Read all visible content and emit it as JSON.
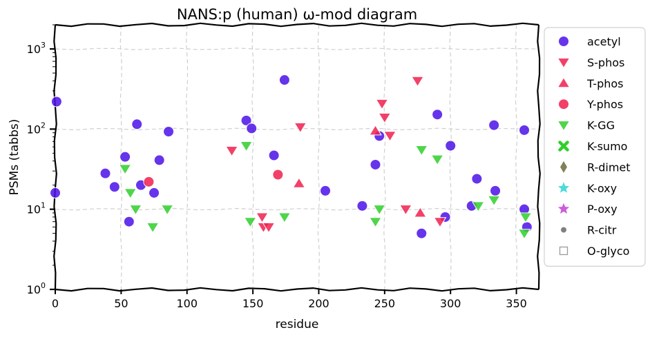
{
  "chart_data": {
    "type": "scatter",
    "title": "NANS:p (human) ω-mod diagram",
    "xlabel": "residue",
    "ylabel": "PSMs (tabbs)",
    "xlim": [
      0,
      367
    ],
    "ylim": [
      1,
      2000
    ],
    "yscale": "log",
    "grid": true,
    "legend_position": "outside-right",
    "x_ticks": [
      "0",
      "50",
      "100",
      "150",
      "200",
      "250",
      "300",
      "350"
    ],
    "x_tick_values": [
      0,
      50,
      100,
      150,
      200,
      250,
      300,
      350
    ],
    "y_ticks": [
      {
        "value": 1,
        "base": "10",
        "exp": "0"
      },
      {
        "value": 10,
        "base": "10",
        "exp": "1"
      },
      {
        "value": 100,
        "base": "10",
        "exp": "2"
      },
      {
        "value": 1000,
        "base": "10",
        "exp": "3"
      }
    ],
    "series": [
      {
        "name": "acetyl",
        "marker": "circle",
        "color": "#4b10e8",
        "points": [
          [
            1,
            220
          ],
          [
            0,
            16
          ],
          [
            38,
            28
          ],
          [
            45,
            19
          ],
          [
            53,
            45
          ],
          [
            56,
            7
          ],
          [
            62,
            115
          ],
          [
            65,
            20
          ],
          [
            75,
            16
          ],
          [
            79,
            41
          ],
          [
            86,
            93
          ],
          [
            145,
            128
          ],
          [
            149,
            102
          ],
          [
            166,
            47
          ],
          [
            174,
            410
          ],
          [
            205,
            17
          ],
          [
            233,
            11
          ],
          [
            243,
            36
          ],
          [
            246,
            82
          ],
          [
            278,
            5
          ],
          [
            290,
            152
          ],
          [
            296,
            8
          ],
          [
            300,
            62
          ],
          [
            316,
            11
          ],
          [
            320,
            24
          ],
          [
            333,
            112
          ],
          [
            334,
            17
          ],
          [
            356,
            97
          ],
          [
            356,
            10
          ],
          [
            358,
            6
          ]
        ]
      },
      {
        "name": "S-phos",
        "marker": "triangle-down",
        "color": "#f0204e",
        "points": [
          [
            134,
            54
          ],
          [
            157,
            8
          ],
          [
            158,
            6
          ],
          [
            162,
            6
          ],
          [
            186,
            106
          ],
          [
            248,
            208
          ],
          [
            250,
            140
          ],
          [
            254,
            83
          ],
          [
            266,
            10
          ],
          [
            275,
            400
          ],
          [
            292,
            7
          ]
        ]
      },
      {
        "name": "T-phos",
        "marker": "triangle-up",
        "color": "#f0204e",
        "points": [
          [
            185,
            21
          ],
          [
            243,
            95
          ],
          [
            277,
            9
          ]
        ]
      },
      {
        "name": "Y-phos",
        "marker": "circle",
        "color": "#f0204e",
        "points": [
          [
            71,
            22
          ],
          [
            169,
            27
          ]
        ]
      },
      {
        "name": "K-GG",
        "marker": "triangle-down",
        "color": "#2fcf2a",
        "points": [
          [
            53,
            32
          ],
          [
            57,
            16
          ],
          [
            61,
            10
          ],
          [
            74,
            6
          ],
          [
            85,
            10
          ],
          [
            145,
            62
          ],
          [
            148,
            7
          ],
          [
            174,
            8
          ],
          [
            243,
            7
          ],
          [
            246,
            10
          ],
          [
            278,
            55
          ],
          [
            290,
            42
          ],
          [
            321,
            11
          ],
          [
            333,
            13
          ],
          [
            356,
            5
          ],
          [
            357,
            8
          ]
        ]
      },
      {
        "name": "K-sumo",
        "marker": "x",
        "color": "#2fcf2a",
        "points": []
      },
      {
        "name": "R-dimet",
        "marker": "diamond",
        "color": "#6b6b3a",
        "points": []
      },
      {
        "name": "K-oxy",
        "marker": "star",
        "color": "#2fd3d3",
        "points": []
      },
      {
        "name": "P-oxy",
        "marker": "star",
        "color": "#c43fd3",
        "points": []
      },
      {
        "name": "R-citr",
        "marker": "small-circle",
        "color": "#6a6a6a",
        "points": []
      },
      {
        "name": "O-glyco",
        "marker": "square-open",
        "color": "#9a9a9a",
        "points": []
      }
    ]
  }
}
